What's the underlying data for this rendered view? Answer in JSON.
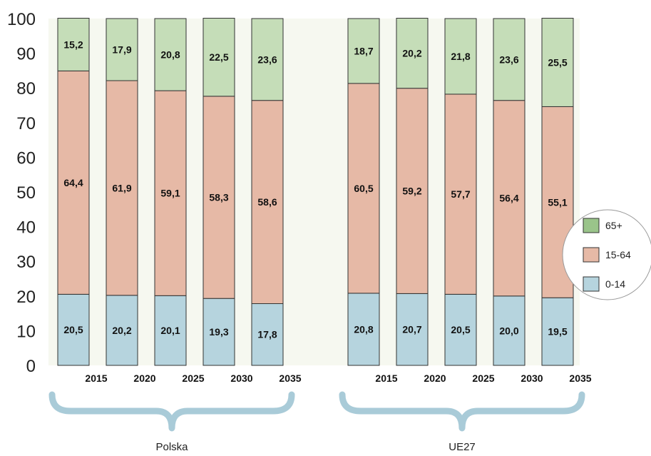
{
  "chart_data": {
    "type": "bar",
    "stacked": true,
    "ylim": [
      0,
      100
    ],
    "yticks": [
      "0",
      "10",
      "20",
      "30",
      "40",
      "50",
      "60",
      "70",
      "80",
      "90",
      "100"
    ],
    "groups": [
      {
        "label": "Polska",
        "categories": [
          "2015",
          "2020",
          "2025",
          "2030",
          "2035"
        ],
        "series": [
          {
            "name": "0-14",
            "values": [
              20.5,
              20.2,
              20.1,
              19.3,
              17.8
            ],
            "labels": [
              "20,5",
              "20,2",
              "20,1",
              "19,3",
              "17,8"
            ]
          },
          {
            "name": "15-64",
            "values": [
              64.4,
              61.9,
              59.1,
              58.3,
              58.6
            ],
            "labels": [
              "64,4",
              "61,9",
              "59,1",
              "58,3",
              "58,6"
            ]
          },
          {
            "name": "65+",
            "values": [
              15.2,
              17.9,
              20.8,
              22.5,
              23.6
            ],
            "labels": [
              "15,2",
              "17,9",
              "20,8",
              "22,5",
              "23,6"
            ]
          }
        ]
      },
      {
        "label": "UE27",
        "categories": [
          "2015",
          "2020",
          "2025",
          "2030",
          "2035"
        ],
        "series": [
          {
            "name": "0-14",
            "values": [
              20.8,
              20.7,
              20.5,
              20.0,
              19.5
            ],
            "labels": [
              "20,8",
              "20,7",
              "20,5",
              "20,0",
              "19,5"
            ]
          },
          {
            "name": "15-64",
            "values": [
              60.5,
              59.2,
              57.7,
              56.4,
              55.1
            ],
            "labels": [
              "60,5",
              "59,2",
              "57,7",
              "56,4",
              "55,1"
            ]
          },
          {
            "name": "65+",
            "values": [
              18.7,
              20.2,
              21.8,
              23.6,
              25.5
            ],
            "labels": [
              "18,7",
              "20,2",
              "21,8",
              "23,6",
              "25,5"
            ]
          }
        ]
      }
    ],
    "legend": {
      "placement": "right",
      "items": [
        {
          "name": "65+",
          "color": "#c5ddb8"
        },
        {
          "name": "15-64",
          "color": "#e6b9a6"
        },
        {
          "name": "0-14",
          "color": "#b6d4de"
        }
      ]
    },
    "colors": {
      "0-14": "#b6d4de",
      "15-64": "#e6b9a6",
      "65+": "#c5ddb8",
      "legend_swatch_65": "#9ac48a",
      "brace": "#a9cbd8",
      "background_band": "#f6f8f0",
      "outline": "#333333"
    }
  }
}
